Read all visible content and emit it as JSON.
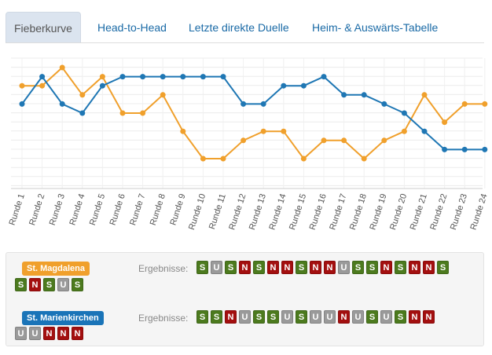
{
  "tabs": [
    {
      "label": "Fieberkurve",
      "active": true
    },
    {
      "label": "Head-to-Head",
      "active": false
    },
    {
      "label": "Letzte direkte Duelle",
      "active": false
    },
    {
      "label": "Heim- & Auswärts-Tabelle",
      "active": false
    }
  ],
  "chart_data": {
    "type": "line",
    "categories": [
      "Runde 1",
      "Runde 2",
      "Runde 3",
      "Runde 4",
      "Runde 5",
      "Runde 6",
      "Runde 7",
      "Runde 8",
      "Runde 9",
      "Runde 10",
      "Runde 11",
      "Runde 12",
      "Runde 13",
      "Runde 14",
      "Runde 15",
      "Runde 16",
      "Runde 17",
      "Runde 18",
      "Runde 19",
      "Runde 20",
      "Runde 21",
      "Runde 22",
      "Runde 23",
      "Runde 24"
    ],
    "y_reversed": true,
    "ylim": [
      1,
      11
    ],
    "grid": true,
    "series": [
      {
        "name": "St. Magdalena",
        "color": "#f0a02c",
        "values": [
          3,
          3,
          1,
          4,
          2,
          6,
          6,
          4,
          8,
          11,
          11,
          9,
          8,
          8,
          11,
          9,
          9,
          11,
          9,
          8,
          4,
          7,
          5,
          5
        ]
      },
      {
        "name": "St. Marienkirchen",
        "color": "#1f77b4",
        "values": [
          5,
          2,
          5,
          6,
          3,
          2,
          2,
          2,
          2,
          2,
          2,
          5,
          5,
          3,
          3,
          2,
          4,
          4,
          5,
          6,
          8,
          10,
          10,
          10
        ]
      }
    ]
  },
  "panel": {
    "ergebnisse_label": "Ergebnisse:",
    "teams": [
      {
        "name": "St. Magdalena",
        "color": "#f0a02c",
        "results": [
          "S",
          "U",
          "S",
          "N",
          "S",
          "N",
          "N",
          "S",
          "N",
          "N",
          "U",
          "S",
          "S",
          "N",
          "S",
          "N",
          "N",
          "S"
        ],
        "extra": [
          "S",
          "N",
          "S",
          "U",
          "S"
        ]
      },
      {
        "name": "St. Marienkirchen",
        "color": "#1a74b8",
        "results": [
          "S",
          "S",
          "N",
          "U",
          "S",
          "S",
          "U",
          "S",
          "U",
          "U",
          "N",
          "U",
          "S",
          "U",
          "S",
          "N",
          "N"
        ],
        "extra": [
          "U",
          "U",
          "N",
          "N",
          "N"
        ]
      }
    ]
  }
}
